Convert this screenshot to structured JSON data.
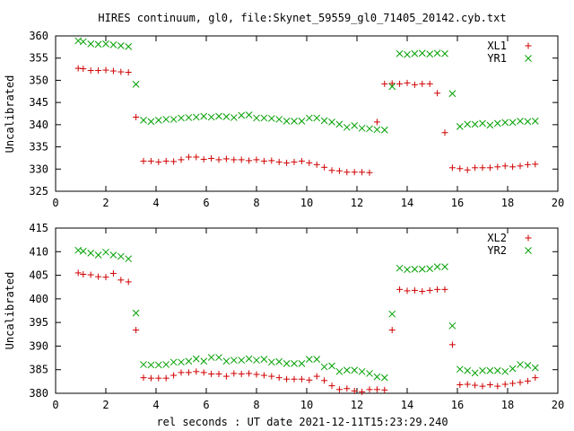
{
  "title": "HIRES continuum, gl0, file:Skynet_59559_gl0_71405_20142.cyb.txt",
  "xlabel": "rel seconds : UT date 2021-12-11T15:23:29.240",
  "colors": {
    "red": "#d00000",
    "green": "#00a000"
  },
  "chart_data": [
    {
      "type": "scatter",
      "title": "HIRES continuum, gl0, file:Skynet_59559_gl0_71405_20142.cyb.txt",
      "xlabel": "",
      "ylabel": "Uncalibrated",
      "xlim": [
        0,
        20
      ],
      "ylim": [
        325,
        360
      ],
      "x_ticks": [
        "0",
        "2",
        "4",
        "6",
        "8",
        "10",
        "12",
        "14",
        "16",
        "18",
        "20"
      ],
      "y_ticks": [
        "325",
        "330",
        "335",
        "340",
        "345",
        "350",
        "355",
        "360"
      ],
      "grid": false,
      "legend_position": "top-right",
      "series": [
        {
          "name": "XL1",
          "marker": "plus",
          "color": "#d00000",
          "x": [
            0.9,
            1.1,
            1.4,
            1.7,
            2.0,
            2.3,
            2.6,
            2.9,
            3.2,
            3.5,
            3.8,
            4.1,
            4.4,
            4.7,
            5.0,
            5.3,
            5.6,
            5.9,
            6.2,
            6.5,
            6.8,
            7.1,
            7.4,
            7.7,
            8.0,
            8.3,
            8.6,
            8.9,
            9.2,
            9.5,
            9.8,
            10.1,
            10.4,
            10.7,
            11.0,
            11.3,
            11.6,
            11.9,
            12.2,
            12.5,
            12.8,
            13.1,
            13.4,
            13.7,
            14.0,
            14.3,
            14.6,
            14.9,
            15.2,
            15.5,
            15.8,
            16.1,
            16.4,
            16.7,
            17.0,
            17.3,
            17.6,
            17.9,
            18.2,
            18.5,
            18.8,
            19.1
          ],
          "y": [
            352.7,
            352.6,
            352.2,
            352.2,
            352.3,
            352.1,
            351.9,
            351.8,
            341.7,
            331.8,
            331.8,
            331.6,
            331.8,
            331.7,
            332.1,
            332.7,
            332.7,
            332.2,
            332.4,
            332.1,
            332.3,
            332.1,
            332.1,
            331.9,
            332.1,
            331.8,
            331.9,
            331.6,
            331.4,
            331.6,
            331.8,
            331.4,
            331.0,
            330.4,
            329.7,
            329.6,
            329.3,
            329.3,
            329.3,
            329.2,
            340.6,
            349.2,
            349.3,
            349.2,
            349.4,
            349.0,
            349.2,
            349.2,
            347.1,
            338.2,
            330.3,
            330.1,
            329.8,
            330.3,
            330.3,
            330.3,
            330.5,
            330.7,
            330.5,
            330.7,
            331.0,
            331.1
          ]
        },
        {
          "name": "YR1",
          "marker": "cross",
          "color": "#00a000",
          "x": [
            0.9,
            1.1,
            1.4,
            1.7,
            2.0,
            2.3,
            2.6,
            2.9,
            3.2,
            3.5,
            3.8,
            4.1,
            4.4,
            4.7,
            5.0,
            5.3,
            5.6,
            5.9,
            6.2,
            6.5,
            6.8,
            7.1,
            7.4,
            7.7,
            8.0,
            8.3,
            8.6,
            8.9,
            9.2,
            9.5,
            9.8,
            10.1,
            10.4,
            10.7,
            11.0,
            11.3,
            11.6,
            11.9,
            12.2,
            12.5,
            12.8,
            13.1,
            13.4,
            13.7,
            14.0,
            14.3,
            14.6,
            14.9,
            15.2,
            15.5,
            15.8,
            16.1,
            16.4,
            16.7,
            17.0,
            17.3,
            17.6,
            17.9,
            18.2,
            18.5,
            18.8,
            19.1
          ],
          "y": [
            358.9,
            358.7,
            358.2,
            358.1,
            358.2,
            358.0,
            357.8,
            357.6,
            349.1,
            341.0,
            340.7,
            341.0,
            341.2,
            341.2,
            341.5,
            341.6,
            341.7,
            341.9,
            341.7,
            341.9,
            341.8,
            341.6,
            342.1,
            342.2,
            341.5,
            341.5,
            341.4,
            341.2,
            340.8,
            340.8,
            340.8,
            341.5,
            341.5,
            340.9,
            340.6,
            340.1,
            339.4,
            339.8,
            339.2,
            339.1,
            338.9,
            338.8,
            348.6,
            356.0,
            355.8,
            356.0,
            356.1,
            355.9,
            356.1,
            356.0,
            347.0,
            339.6,
            340.1,
            340.1,
            340.3,
            339.9,
            340.3,
            340.5,
            340.5,
            340.8,
            340.7,
            340.8
          ]
        }
      ]
    },
    {
      "type": "scatter",
      "title": "",
      "xlabel": "rel seconds : UT date 2021-12-11T15:23:29.240",
      "ylabel": "Uncalibrated",
      "xlim": [
        0,
        20
      ],
      "ylim": [
        380,
        415
      ],
      "x_ticks": [
        "0",
        "2",
        "4",
        "6",
        "8",
        "10",
        "12",
        "14",
        "16",
        "18",
        "20"
      ],
      "y_ticks": [
        "380",
        "385",
        "390",
        "395",
        "400",
        "405",
        "410",
        "415"
      ],
      "grid": false,
      "legend_position": "top-right",
      "series": [
        {
          "name": "XL2",
          "marker": "plus",
          "color": "#d00000",
          "x": [
            0.9,
            1.1,
            1.4,
            1.7,
            2.0,
            2.3,
            2.6,
            2.9,
            3.2,
            3.5,
            3.8,
            4.1,
            4.4,
            4.7,
            5.0,
            5.3,
            5.6,
            5.9,
            6.2,
            6.5,
            6.8,
            7.1,
            7.4,
            7.7,
            8.0,
            8.3,
            8.6,
            8.9,
            9.2,
            9.5,
            9.8,
            10.1,
            10.4,
            10.7,
            11.0,
            11.3,
            11.6,
            11.9,
            12.2,
            12.5,
            12.8,
            13.1,
            13.4,
            13.7,
            14.0,
            14.3,
            14.6,
            14.9,
            15.2,
            15.5,
            15.8,
            16.1,
            16.4,
            16.7,
            17.0,
            17.3,
            17.6,
            17.9,
            18.2,
            18.5,
            18.8,
            19.1
          ],
          "y": [
            405.5,
            405.2,
            405.1,
            404.7,
            404.6,
            405.4,
            404.0,
            403.6,
            393.4,
            383.3,
            383.2,
            383.2,
            383.2,
            383.8,
            384.4,
            384.4,
            384.6,
            384.4,
            384.1,
            384.1,
            383.6,
            384.2,
            384.1,
            384.2,
            384.0,
            383.8,
            383.6,
            383.3,
            383.0,
            383.0,
            383.0,
            382.8,
            383.6,
            382.7,
            381.6,
            380.8,
            381.0,
            380.5,
            380.3,
            380.8,
            380.8,
            380.7,
            393.4,
            402.0,
            401.7,
            401.8,
            401.6,
            401.8,
            402.0,
            402.0,
            390.3,
            381.8,
            381.9,
            381.7,
            381.5,
            381.8,
            381.5,
            381.9,
            382.1,
            382.3,
            382.6,
            383.3
          ]
        },
        {
          "name": "YR2",
          "marker": "cross",
          "color": "#00a000",
          "x": [
            0.9,
            1.1,
            1.4,
            1.7,
            2.0,
            2.3,
            2.6,
            2.9,
            3.2,
            3.5,
            3.8,
            4.1,
            4.4,
            4.7,
            5.0,
            5.3,
            5.6,
            5.9,
            6.2,
            6.5,
            6.8,
            7.1,
            7.4,
            7.7,
            8.0,
            8.3,
            8.6,
            8.9,
            9.2,
            9.5,
            9.8,
            10.1,
            10.4,
            10.7,
            11.0,
            11.3,
            11.6,
            11.9,
            12.2,
            12.5,
            12.8,
            13.1,
            13.4,
            13.7,
            14.0,
            14.3,
            14.6,
            14.9,
            15.2,
            15.5,
            15.8,
            16.1,
            16.4,
            16.7,
            17.0,
            17.3,
            17.6,
            17.9,
            18.2,
            18.5,
            18.8,
            19.1
          ],
          "y": [
            410.3,
            410.1,
            409.7,
            409.3,
            409.9,
            409.3,
            409.0,
            408.5,
            397.0,
            386.1,
            386.0,
            386.0,
            386.1,
            386.6,
            386.6,
            386.8,
            387.3,
            386.8,
            387.6,
            387.6,
            386.8,
            387.0,
            387.0,
            387.3,
            387.0,
            387.2,
            386.6,
            386.7,
            386.3,
            386.3,
            386.3,
            387.2,
            387.2,
            385.6,
            385.8,
            384.6,
            384.9,
            384.9,
            384.6,
            384.2,
            383.5,
            383.3,
            396.8,
            406.5,
            406.2,
            406.3,
            406.3,
            406.4,
            406.8,
            406.8,
            394.3,
            385.1,
            384.8,
            384.3,
            384.8,
            384.8,
            384.8,
            384.6,
            385.2,
            386.1,
            385.9,
            385.4
          ]
        }
      ]
    }
  ]
}
